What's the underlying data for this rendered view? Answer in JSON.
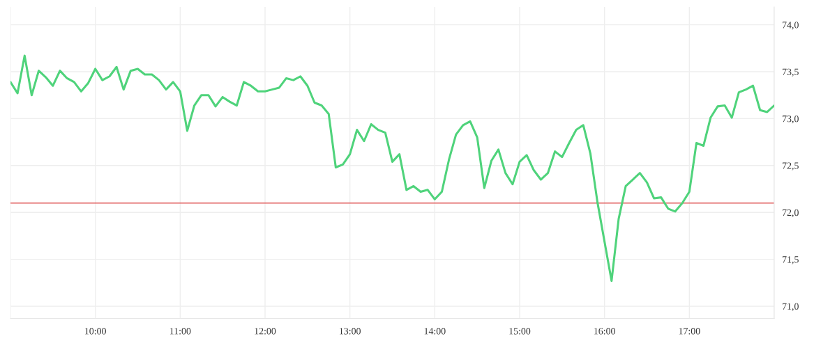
{
  "chart_data": {
    "type": "line",
    "x": [
      9,
      9.0833,
      9.1667,
      9.25,
      9.3333,
      9.4167,
      9.5,
      9.5833,
      9.6667,
      9.75,
      9.8333,
      9.9167,
      10,
      10.0833,
      10.1667,
      10.25,
      10.3333,
      10.4167,
      10.5,
      10.5833,
      10.6667,
      10.75,
      10.8333,
      10.9167,
      11,
      11.0833,
      11.1667,
      11.25,
      11.3333,
      11.4167,
      11.5,
      11.5833,
      11.6667,
      11.75,
      11.8333,
      11.9167,
      12,
      12.0833,
      12.1667,
      12.25,
      12.3333,
      12.4167,
      12.5,
      12.5833,
      12.6667,
      12.75,
      12.8333,
      12.9167,
      13,
      13.0833,
      13.1667,
      13.25,
      13.3333,
      13.4167,
      13.5,
      13.5833,
      13.6667,
      13.75,
      13.8333,
      13.9167,
      14,
      14.0833,
      14.1667,
      14.25,
      14.3333,
      14.4167,
      14.5,
      14.5833,
      14.6667,
      14.75,
      14.8333,
      14.9167,
      15,
      15.0833,
      15.1667,
      15.25,
      15.3333,
      15.4167,
      15.5,
      15.5833,
      15.6667,
      15.75,
      15.8333,
      15.9167,
      16,
      16.0833,
      16.1667,
      16.25,
      16.3333,
      16.4167,
      16.5,
      16.5833,
      16.6667,
      16.75,
      16.8333,
      16.9167,
      17,
      17.0833,
      17.1667,
      17.25,
      17.3333,
      17.4167,
      17.5,
      17.5833,
      17.6667,
      17.75,
      17.8333,
      17.9167,
      18
    ],
    "series": [
      {
        "color": "#4fd37b",
        "values": [
          73.39,
          73.27,
          73.67,
          73.25,
          73.51,
          73.44,
          73.35,
          73.51,
          73.43,
          73.39,
          73.29,
          73.38,
          73.53,
          73.41,
          73.45,
          73.55,
          73.31,
          73.51,
          73.53,
          73.47,
          73.47,
          73.41,
          73.31,
          73.39,
          73.29,
          72.87,
          73.14,
          73.25,
          73.25,
          73.13,
          73.23,
          73.18,
          73.14,
          73.39,
          73.35,
          73.29,
          73.29,
          73.31,
          73.33,
          73.43,
          73.41,
          73.45,
          73.35,
          73.17,
          73.14,
          73.05,
          72.48,
          72.51,
          72.62,
          72.88,
          72.76,
          72.94,
          72.88,
          72.85,
          72.54,
          72.62,
          72.24,
          72.28,
          72.22,
          72.24,
          72.14,
          72.22,
          72.56,
          72.83,
          72.93,
          72.97,
          72.8,
          72.26,
          72.55,
          72.67,
          72.42,
          72.3,
          72.54,
          72.61,
          72.45,
          72.35,
          72.42,
          72.65,
          72.59,
          72.74,
          72.88,
          72.93,
          72.63,
          72.11,
          71.69,
          71.27,
          71.93,
          72.28,
          72.35,
          72.42,
          72.32,
          72.15,
          72.16,
          72.04,
          72.01,
          72.1,
          72.22,
          72.74,
          72.71,
          73.01,
          73.13,
          73.14,
          73.01,
          73.28,
          73.31,
          73.35,
          73.09,
          73.07,
          73.14
        ]
      }
    ],
    "xlim": [
      9,
      18
    ],
    "xticks": [
      {
        "value": 9,
        "label": null
      },
      {
        "value": 10,
        "label": "10:00"
      },
      {
        "value": 11,
        "label": "11:00"
      },
      {
        "value": 12,
        "label": "12:00"
      },
      {
        "value": 13,
        "label": "13:00"
      },
      {
        "value": 14,
        "label": "14:00"
      },
      {
        "value": 15,
        "label": "15:00"
      },
      {
        "value": 16,
        "label": "16:00"
      },
      {
        "value": 17,
        "label": "17:00"
      },
      {
        "value": 18,
        "label": null
      }
    ],
    "ylim": [
      70.87,
      74.19
    ],
    "yticks": [
      {
        "value": 71,
        "label": "71,0"
      },
      {
        "value": 71.5,
        "label": "71,5"
      },
      {
        "value": 72,
        "label": "72,0"
      },
      {
        "value": 72.5,
        "label": "72,5"
      },
      {
        "value": 73,
        "label": "73,0"
      },
      {
        "value": 73.5,
        "label": "73,5"
      },
      {
        "value": 74,
        "label": "74,0"
      }
    ],
    "ref_lines": [
      {
        "axis": "y",
        "value": 72.1,
        "color": "#e05a5a"
      }
    ],
    "grid": true,
    "line_style": "solid"
  }
}
